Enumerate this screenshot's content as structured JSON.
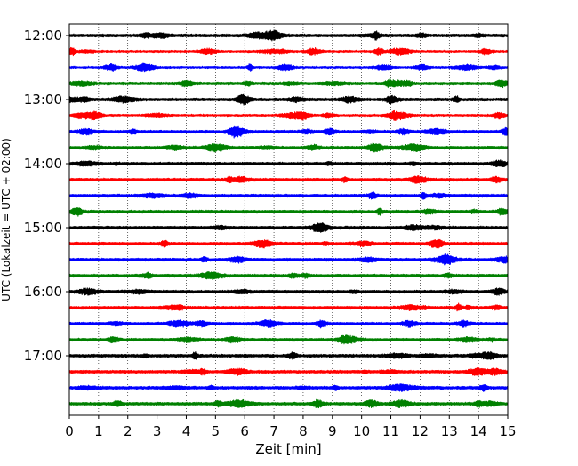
{
  "chart_data": {
    "type": "line",
    "title": "",
    "xlabel": "Zeit  [min]",
    "ylabel": "UTC (Lokalzeit = UTC + 02:00)",
    "xlim": [
      0,
      15
    ],
    "x_ticks": [
      0,
      1,
      2,
      3,
      4,
      5,
      6,
      7,
      8,
      9,
      10,
      11,
      12,
      13,
      14,
      15
    ],
    "y_tick_labels": [
      "12:00",
      "13:00",
      "14:00",
      "15:00",
      "16:00",
      "17:00"
    ],
    "grid": "vertical dotted lines at each minute",
    "trace_interval_minutes": 15,
    "trace_colors": [
      "#000000",
      "#ff0000",
      "#0000ff",
      "#008000"
    ],
    "traces": [
      {
        "start": "12:00",
        "color": "#000000"
      },
      {
        "start": "12:15",
        "color": "#ff0000"
      },
      {
        "start": "12:30",
        "color": "#0000ff"
      },
      {
        "start": "12:45",
        "color": "#008000"
      },
      {
        "start": "13:00",
        "color": "#000000"
      },
      {
        "start": "13:15",
        "color": "#ff0000"
      },
      {
        "start": "13:30",
        "color": "#0000ff"
      },
      {
        "start": "13:45",
        "color": "#008000"
      },
      {
        "start": "14:00",
        "color": "#000000"
      },
      {
        "start": "14:15",
        "color": "#ff0000"
      },
      {
        "start": "14:30",
        "color": "#0000ff"
      },
      {
        "start": "14:45",
        "color": "#008000"
      },
      {
        "start": "15:00",
        "color": "#000000"
      },
      {
        "start": "15:15",
        "color": "#ff0000"
      },
      {
        "start": "15:30",
        "color": "#0000ff"
      },
      {
        "start": "15:45",
        "color": "#008000"
      },
      {
        "start": "16:00",
        "color": "#000000"
      },
      {
        "start": "16:15",
        "color": "#ff0000"
      },
      {
        "start": "16:30",
        "color": "#0000ff"
      },
      {
        "start": "16:45",
        "color": "#008000"
      },
      {
        "start": "17:00",
        "color": "#000000"
      },
      {
        "start": "17:15",
        "color": "#ff0000"
      },
      {
        "start": "17:30",
        "color": "#0000ff"
      },
      {
        "start": "17:45",
        "color": "#008000"
      }
    ]
  }
}
